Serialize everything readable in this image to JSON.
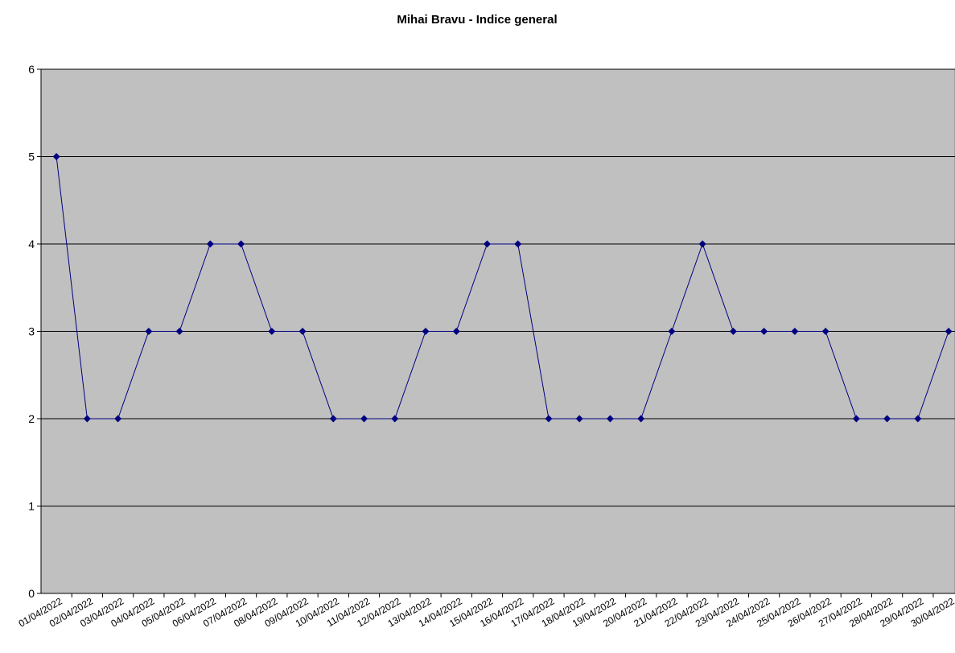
{
  "chart_data": {
    "type": "line",
    "title": "Mihai Bravu - Indice general",
    "categories": [
      "01/04/2022",
      "02/04/2022",
      "03/04/2022",
      "04/04/2022",
      "05/04/2022",
      "06/04/2022",
      "07/04/2022",
      "08/04/2022",
      "09/04/2022",
      "10/04/2022",
      "11/04/2022",
      "12/04/2022",
      "13/04/2022",
      "14/04/2022",
      "15/04/2022",
      "16/04/2022",
      "17/04/2022",
      "18/04/2022",
      "19/04/2022",
      "20/04/2022",
      "21/04/2022",
      "22/04/2022",
      "23/04/2022",
      "24/04/2022",
      "25/04/2022",
      "26/04/2022",
      "27/04/2022",
      "28/04/2022",
      "29/04/2022",
      "30/04/2022"
    ],
    "values": [
      5,
      2,
      2,
      3,
      3,
      4,
      4,
      3,
      3,
      2,
      2,
      2,
      3,
      3,
      4,
      4,
      2,
      2,
      2,
      2,
      3,
      4,
      3,
      3,
      3,
      3,
      2,
      2,
      2,
      3
    ],
    "color": "#000080",
    "ylim": [
      0,
      6
    ],
    "yticks": [
      0,
      1,
      2,
      3,
      4,
      5,
      6
    ],
    "grid": true
  }
}
